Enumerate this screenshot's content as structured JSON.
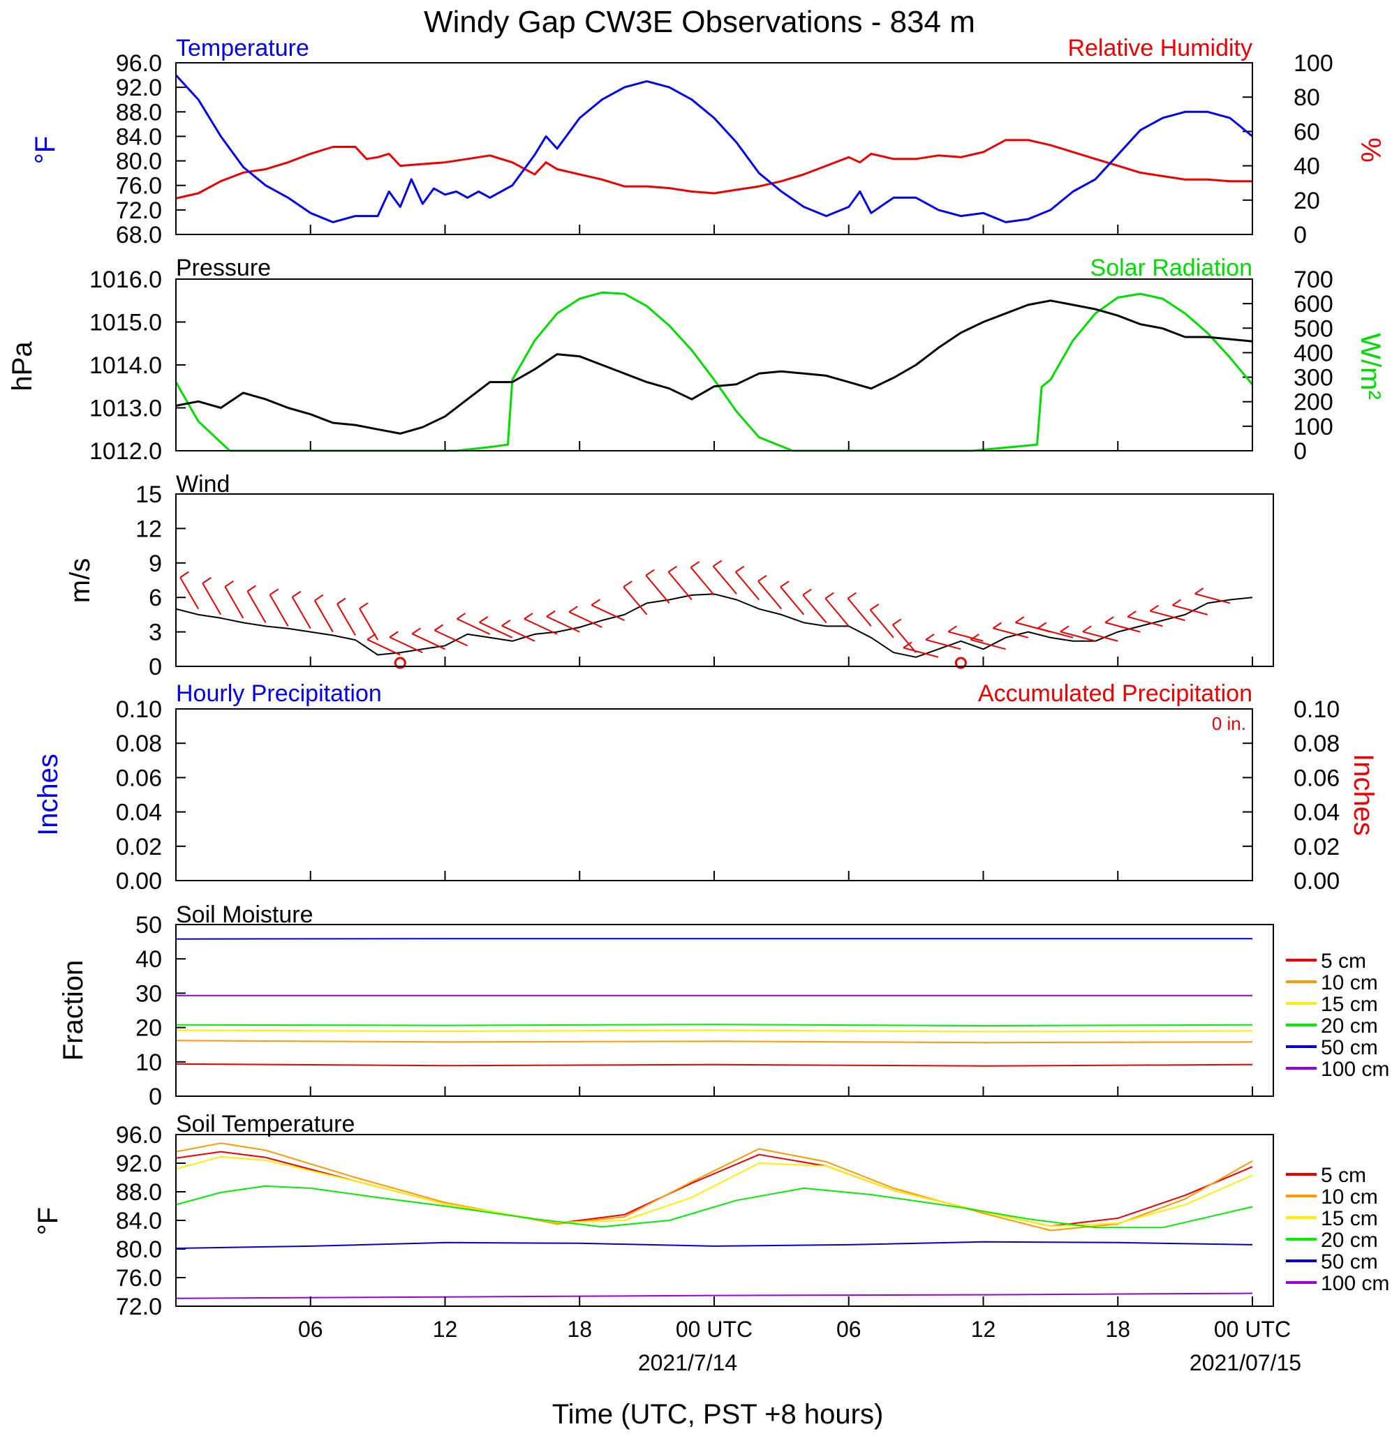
{
  "figure": {
    "title": "Windy Gap CW3E Observations - 834 m",
    "xlabel": "Time (UTC, PST +8 hours)",
    "x_ticks": [
      "06",
      "12",
      "18",
      "00 UTC",
      "06",
      "12",
      "18",
      "00 UTC"
    ],
    "dates": [
      "2021/7/14",
      "2021/07/15"
    ]
  },
  "panels": {
    "temp_rh": {
      "left_title": "Temperature",
      "right_title": "Relative Humidity",
      "left_unit": "°F",
      "right_unit": "%",
      "left_ticks": [
        "96.0",
        "92.0",
        "88.0",
        "84.0",
        "80.0",
        "76.0",
        "72.0",
        "68.0"
      ],
      "right_ticks": [
        "100",
        "80",
        "60",
        "40",
        "20",
        "0"
      ]
    },
    "pressure_solar": {
      "left_title": "Pressure",
      "right_title": "Solar Radiation",
      "left_unit": "hPa",
      "right_unit": "W/m²",
      "left_ticks": [
        "1016.0",
        "1015.0",
        "1014.0",
        "1013.0",
        "1012.0"
      ],
      "right_ticks": [
        "700",
        "600",
        "500",
        "400",
        "300",
        "200",
        "100",
        "0"
      ]
    },
    "wind": {
      "left_title": "Wind",
      "left_unit": "m/s",
      "left_ticks": [
        "15",
        "12",
        "9",
        "6",
        "3",
        "0"
      ]
    },
    "precip": {
      "left_title": "Hourly Precipitation",
      "right_title": "Accumulated Precipitation",
      "annotation": "0 in.",
      "left_unit": "Inches",
      "right_unit": "Inches",
      "left_ticks": [
        "0.10",
        "0.08",
        "0.06",
        "0.04",
        "0.02",
        "0.00"
      ],
      "right_ticks": [
        "0.10",
        "0.08",
        "0.06",
        "0.04",
        "0.02",
        "0.00"
      ]
    },
    "soil_moisture": {
      "left_title": "Soil Moisture",
      "left_unit": "Fraction",
      "left_ticks": [
        "50",
        "40",
        "30",
        "20",
        "10",
        "0"
      ],
      "legend": [
        "5 cm",
        "10 cm",
        "15 cm",
        "20 cm",
        "50 cm",
        "100 cm"
      ]
    },
    "soil_temp": {
      "left_title": "Soil Temperature",
      "left_unit": "°F",
      "left_ticks": [
        "96.0",
        "92.0",
        "88.0",
        "84.0",
        "80.0",
        "76.0",
        "72.0"
      ],
      "legend": [
        "5 cm",
        "10 cm",
        "15 cm",
        "20 cm",
        "50 cm",
        "100 cm"
      ]
    }
  },
  "colors": {
    "temperature": "#0000ee",
    "humidity": "#ee0000",
    "pressure": "#000000",
    "solar": "#00dd00",
    "wind": "#000000",
    "barbs": "#ee0000",
    "depths": [
      "#ee0000",
      "#ff9900",
      "#ffee00",
      "#00ee00",
      "#0000cc",
      "#9900dd"
    ]
  },
  "chart_data": [
    {
      "type": "line",
      "panel": "temp_rh",
      "x_unit": "hours since 2021-07-13 00 UTC",
      "xlim": [
        1,
        49
      ],
      "series": [
        {
          "name": "Temperature",
          "axis": "left",
          "ylim": [
            68,
            96
          ],
          "x": [
            1,
            2,
            3,
            4,
            5,
            6,
            7,
            8,
            9,
            10,
            10.5,
            11,
            11.5,
            12,
            12.5,
            13,
            13.5,
            14,
            14.5,
            15,
            16,
            17,
            17.5,
            18,
            19,
            20,
            21,
            22,
            23,
            24,
            25,
            26,
            27,
            28,
            29,
            30,
            31,
            31.5,
            32,
            33,
            34,
            35,
            36,
            37,
            38,
            39,
            40,
            41,
            42,
            43,
            44,
            45,
            46,
            47,
            48,
            49
          ],
          "y": [
            94,
            90,
            84,
            79,
            76,
            74,
            71.5,
            70,
            71,
            71,
            75,
            72.5,
            77,
            73,
            75.5,
            74.5,
            75,
            74,
            75,
            74,
            76,
            81,
            84,
            82,
            87,
            90,
            92,
            93,
            92,
            90,
            87,
            83,
            78,
            75,
            72.5,
            71,
            72.5,
            75,
            71.5,
            74,
            74,
            72,
            71,
            71.5,
            70,
            70.5,
            72,
            75,
            77,
            81,
            85,
            87,
            88,
            88,
            87,
            84
          ]
        },
        {
          "name": "Relative Humidity",
          "axis": "right",
          "ylim": [
            0,
            100
          ],
          "x": [
            1,
            2,
            3,
            4,
            5,
            6,
            7,
            8,
            9,
            9.5,
            10,
            10.5,
            11,
            12,
            13,
            14,
            15,
            16,
            17,
            17.5,
            18,
            19,
            20,
            21,
            22,
            23,
            24,
            25,
            26,
            27,
            28,
            29,
            30,
            31,
            31.5,
            32,
            33,
            34,
            35,
            36,
            37,
            38,
            39,
            40,
            41,
            42,
            43,
            44,
            45,
            46,
            47,
            48,
            49
          ],
          "y": [
            21,
            24,
            31,
            36,
            38,
            42,
            47,
            51,
            51,
            44,
            45,
            47,
            40,
            41,
            42,
            44,
            46,
            42,
            35,
            42,
            38,
            35,
            32,
            28,
            28,
            27,
            25,
            24,
            26,
            28,
            31,
            35,
            40,
            45,
            42,
            47,
            44,
            44,
            46,
            45,
            48,
            55,
            55,
            52,
            48,
            44,
            40,
            36,
            34,
            32,
            32,
            31,
            31
          ]
        }
      ]
    },
    {
      "type": "line",
      "panel": "pressure_solar",
      "x_unit": "hours since 2021-07-13 00 UTC",
      "xlim": [
        1,
        49
      ],
      "series": [
        {
          "name": "Pressure",
          "axis": "left",
          "ylim": [
            1012,
            1016
          ],
          "x": [
            1,
            2,
            3,
            4,
            5,
            6,
            7,
            8,
            9,
            10,
            11,
            12,
            13,
            14,
            15,
            16,
            17,
            18,
            19,
            20,
            21,
            22,
            23,
            24,
            25,
            26,
            27,
            28,
            29,
            30,
            31,
            32,
            33,
            34,
            35,
            36,
            37,
            38,
            39,
            40,
            41,
            42,
            43,
            44,
            45,
            46,
            47,
            48,
            49
          ],
          "y": [
            1013.05,
            1013.15,
            1013.0,
            1013.35,
            1013.2,
            1013.0,
            1012.85,
            1012.65,
            1012.6,
            1012.5,
            1012.4,
            1012.55,
            1012.8,
            1013.2,
            1013.6,
            1013.6,
            1013.9,
            1014.25,
            1014.2,
            1014.0,
            1013.8,
            1013.6,
            1013.45,
            1013.2,
            1013.5,
            1013.55,
            1013.8,
            1013.85,
            1013.8,
            1013.75,
            1013.6,
            1013.45,
            1013.7,
            1014.0,
            1014.4,
            1014.75,
            1015.0,
            1015.2,
            1015.4,
            1015.5,
            1015.4,
            1015.3,
            1015.15,
            1014.95,
            1014.85,
            1014.65,
            1014.65,
            1014.6,
            1014.55
          ]
        },
        {
          "name": "Solar Radiation",
          "axis": "right",
          "ylim": [
            0,
            700
          ],
          "x": [
            1,
            2,
            3.4,
            5,
            7,
            9,
            12,
            13.5,
            15,
            15.8,
            16,
            17,
            18,
            19,
            20,
            21,
            22,
            23,
            24,
            25,
            26,
            27,
            28.5,
            30,
            33,
            36.5,
            39.4,
            39.6,
            40,
            41,
            42,
            43,
            44,
            45,
            46,
            47,
            48,
            49
          ],
          "y": [
            280,
            120,
            0,
            0,
            0,
            0,
            0,
            0,
            15,
            25,
            290,
            450,
            560,
            620,
            645,
            640,
            590,
            510,
            410,
            290,
            160,
            55,
            0,
            0,
            0,
            0,
            25,
            260,
            290,
            450,
            560,
            625,
            640,
            620,
            560,
            480,
            380,
            270
          ]
        }
      ]
    },
    {
      "type": "line",
      "panel": "wind",
      "x_unit": "hours since 2021-07-13 00 UTC",
      "xlim": [
        1,
        49
      ],
      "ylim": [
        0,
        15
      ],
      "series": [
        {
          "name": "Wind speed",
          "x": [
            1,
            2,
            3,
            4,
            5,
            6,
            7,
            8,
            9,
            10,
            11,
            12,
            13,
            14,
            15,
            16,
            17,
            18,
            19,
            20,
            21,
            22,
            23,
            24,
            25,
            26,
            27,
            28,
            29,
            30,
            31,
            32,
            33,
            34,
            35,
            36,
            37,
            38,
            39,
            40,
            41,
            42,
            43,
            44,
            45,
            46,
            47,
            48,
            49
          ],
          "y": [
            5,
            4.5,
            4.2,
            3.8,
            3.5,
            3.3,
            3,
            2.7,
            2.3,
            1,
            1.2,
            1.5,
            1.8,
            2.8,
            2.5,
            2.2,
            2.8,
            3,
            3.4,
            4,
            4.5,
            5.5,
            5.8,
            6.2,
            6.3,
            5.8,
            5,
            4.5,
            3.8,
            3.5,
            3.5,
            2.5,
            1.2,
            0.8,
            1.5,
            2.2,
            1.5,
            2.5,
            3,
            2.5,
            2.2,
            2.2,
            3,
            3.5,
            4,
            4.5,
            5.5,
            5.8,
            6
          ]
        }
      ]
    },
    {
      "type": "line",
      "panel": "precip",
      "xlim": [
        1,
        49
      ],
      "ylim": [
        0,
        0.1
      ],
      "series": [
        {
          "name": "Hourly Precipitation",
          "x": [
            1,
            49
          ],
          "y": [
            0,
            0
          ]
        },
        {
          "name": "Accumulated Precipitation",
          "x": [
            1,
            49
          ],
          "y": [
            0,
            0
          ]
        }
      ]
    },
    {
      "type": "line",
      "panel": "soil_moisture",
      "xlim": [
        1,
        49
      ],
      "ylim": [
        0,
        50
      ],
      "series": [
        {
          "name": "5 cm",
          "x": [
            1,
            13,
            25,
            37,
            49
          ],
          "y": [
            9.4,
            8.9,
            9.2,
            8.8,
            9.2
          ]
        },
        {
          "name": "10 cm",
          "x": [
            1,
            13,
            25,
            37,
            49
          ],
          "y": [
            16.2,
            15.8,
            16,
            15.6,
            15.8
          ]
        },
        {
          "name": "15 cm",
          "x": [
            1,
            13,
            25,
            37,
            49
          ],
          "y": [
            19.2,
            18.9,
            19.2,
            18.8,
            19
          ]
        },
        {
          "name": "20 cm",
          "x": [
            1,
            13,
            25,
            37,
            49
          ],
          "y": [
            20.8,
            20.6,
            20.9,
            20.5,
            20.8
          ]
        },
        {
          "name": "50 cm",
          "x": [
            1,
            13,
            25,
            37,
            49
          ],
          "y": [
            45.8,
            45.9,
            45.9,
            45.9,
            45.9
          ]
        },
        {
          "name": "100 cm",
          "x": [
            1,
            13,
            25,
            37,
            49
          ],
          "y": [
            29.3,
            29.3,
            29.3,
            29.3,
            29.3
          ]
        }
      ]
    },
    {
      "type": "line",
      "panel": "soil_temp",
      "xlim": [
        1,
        49
      ],
      "ylim": [
        72,
        96
      ],
      "series": [
        {
          "name": "5 cm",
          "x": [
            1,
            3,
            5,
            9,
            13,
            18,
            21,
            24,
            27,
            30,
            33,
            37,
            40,
            43,
            46,
            49
          ],
          "y": [
            92.7,
            93.6,
            92.8,
            89.5,
            86.3,
            83.6,
            84.8,
            89.2,
            93.2,
            91.6,
            88.2,
            85.2,
            83.2,
            84.3,
            87.5,
            91.5
          ]
        },
        {
          "name": "10 cm",
          "x": [
            1,
            3,
            5,
            9,
            13,
            18,
            21,
            24,
            27,
            30,
            33,
            37,
            40,
            43,
            46,
            49
          ],
          "y": [
            93.6,
            94.8,
            93.8,
            90,
            86.5,
            83.5,
            84.5,
            89.4,
            94,
            92.2,
            88.5,
            85,
            82.6,
            83.5,
            87,
            92.3
          ]
        },
        {
          "name": "15 cm",
          "x": [
            1,
            3,
            5,
            9,
            13,
            18,
            21,
            24,
            27,
            30,
            33,
            37,
            40,
            43,
            46,
            49
          ],
          "y": [
            91.2,
            92.9,
            92.4,
            89.5,
            86.3,
            83.7,
            84,
            87.2,
            92,
            91.6,
            88.2,
            85.2,
            83.2,
            83.6,
            86.2,
            90.3
          ]
        },
        {
          "name": "20 cm",
          "x": [
            1,
            3,
            5,
            7,
            10,
            13,
            17,
            20,
            23,
            26,
            29,
            32,
            36,
            39,
            42,
            45,
            49
          ],
          "y": [
            86.2,
            87.9,
            88.8,
            88.5,
            87.2,
            86,
            84.2,
            83.1,
            84,
            86.8,
            88.5,
            87.6,
            85.8,
            84.2,
            83,
            83,
            85.9
          ]
        },
        {
          "name": "50 cm",
          "x": [
            1,
            7,
            13,
            19,
            25,
            31,
            37,
            43,
            49
          ],
          "y": [
            80.1,
            80.4,
            80.9,
            80.8,
            80.4,
            80.6,
            81,
            80.9,
            80.6
          ]
        },
        {
          "name": "100 cm",
          "x": [
            1,
            13,
            25,
            37,
            49
          ],
          "y": [
            73.1,
            73.3,
            73.5,
            73.6,
            73.8
          ]
        }
      ]
    },
    {
      "type": "wind_barbs",
      "panel": "wind",
      "description": "red wind barbs plotted hourly along the wind trace",
      "x": [
        2,
        3,
        4,
        5,
        6,
        7,
        8,
        9,
        10,
        11,
        12,
        13,
        14,
        15,
        16,
        17,
        18,
        19,
        20,
        21,
        22,
        23,
        24,
        25,
        26,
        27,
        28,
        29,
        30,
        31,
        32,
        33,
        34,
        35,
        36,
        37,
        38,
        39,
        40,
        41,
        42,
        43,
        44,
        45,
        46,
        47,
        48
      ],
      "y": [
        5,
        4.5,
        4.2,
        3.8,
        3.5,
        3.3,
        3,
        2.7,
        2.3,
        1,
        1.2,
        1.5,
        1.8,
        2.8,
        2.5,
        2.2,
        2.8,
        3,
        3.4,
        4,
        4.5,
        5.5,
        5.8,
        6.2,
        6.3,
        5.8,
        5,
        4.5,
        3.8,
        3.5,
        3.5,
        2.5,
        1.2,
        0.8,
        1.5,
        2.2,
        1.5,
        2.5,
        3,
        2.5,
        2.2,
        2.2,
        3,
        3.5,
        4,
        4.5,
        5.5
      ],
      "calm_x": [
        11,
        36
      ]
    }
  ]
}
